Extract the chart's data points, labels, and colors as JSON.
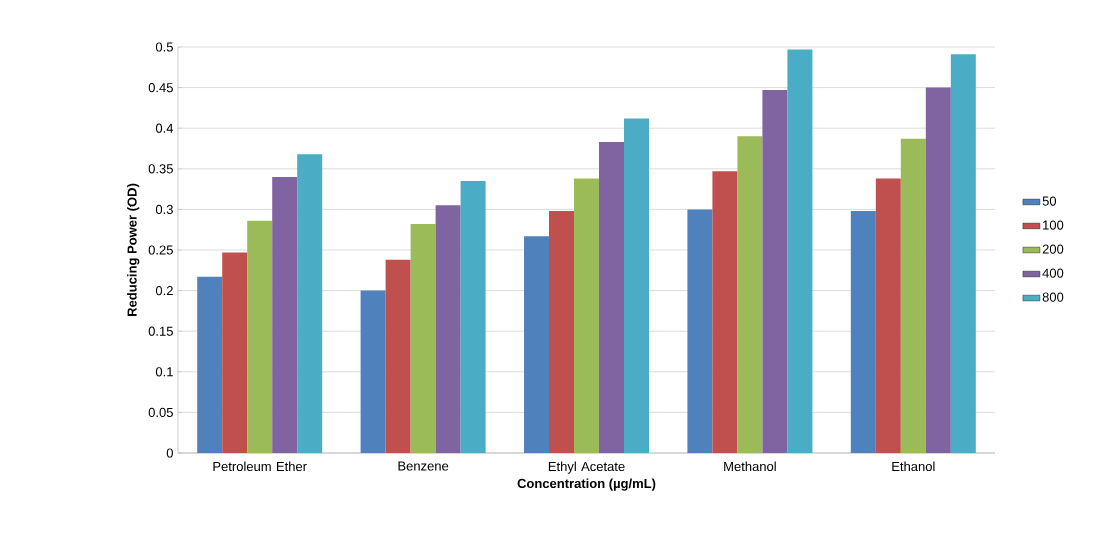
{
  "chart_data": {
    "type": "bar",
    "xlabel": "Concentration (µg/mL)",
    "ylabel": "Reducing Power (OD)",
    "categories": [
      "Petroleum Ether",
      "Benzene",
      "Ethyl Acetate",
      "Methanol",
      "Ethanol"
    ],
    "series": [
      {
        "name": "50",
        "color": "#4f81bd",
        "values": [
          0.217,
          0.2,
          0.267,
          0.3,
          0.298
        ]
      },
      {
        "name": "100",
        "color": "#c0504d",
        "values": [
          0.247,
          0.238,
          0.298,
          0.347,
          0.338
        ]
      },
      {
        "name": "200",
        "color": "#9bbb59",
        "values": [
          0.286,
          0.282,
          0.338,
          0.39,
          0.387
        ]
      },
      {
        "name": "400",
        "color": "#8064a2",
        "values": [
          0.34,
          0.305,
          0.383,
          0.447,
          0.45
        ]
      },
      {
        "name": "800",
        "color": "#4bacc6",
        "values": [
          0.368,
          0.335,
          0.412,
          0.497,
          0.491
        ]
      }
    ],
    "ylim": [
      0,
      0.5
    ],
    "yticks": [
      0,
      0.05,
      0.1,
      0.15,
      0.2,
      0.25,
      0.3,
      0.35,
      0.4,
      0.45,
      0.5
    ],
    "grid": "y",
    "legend": "right"
  }
}
